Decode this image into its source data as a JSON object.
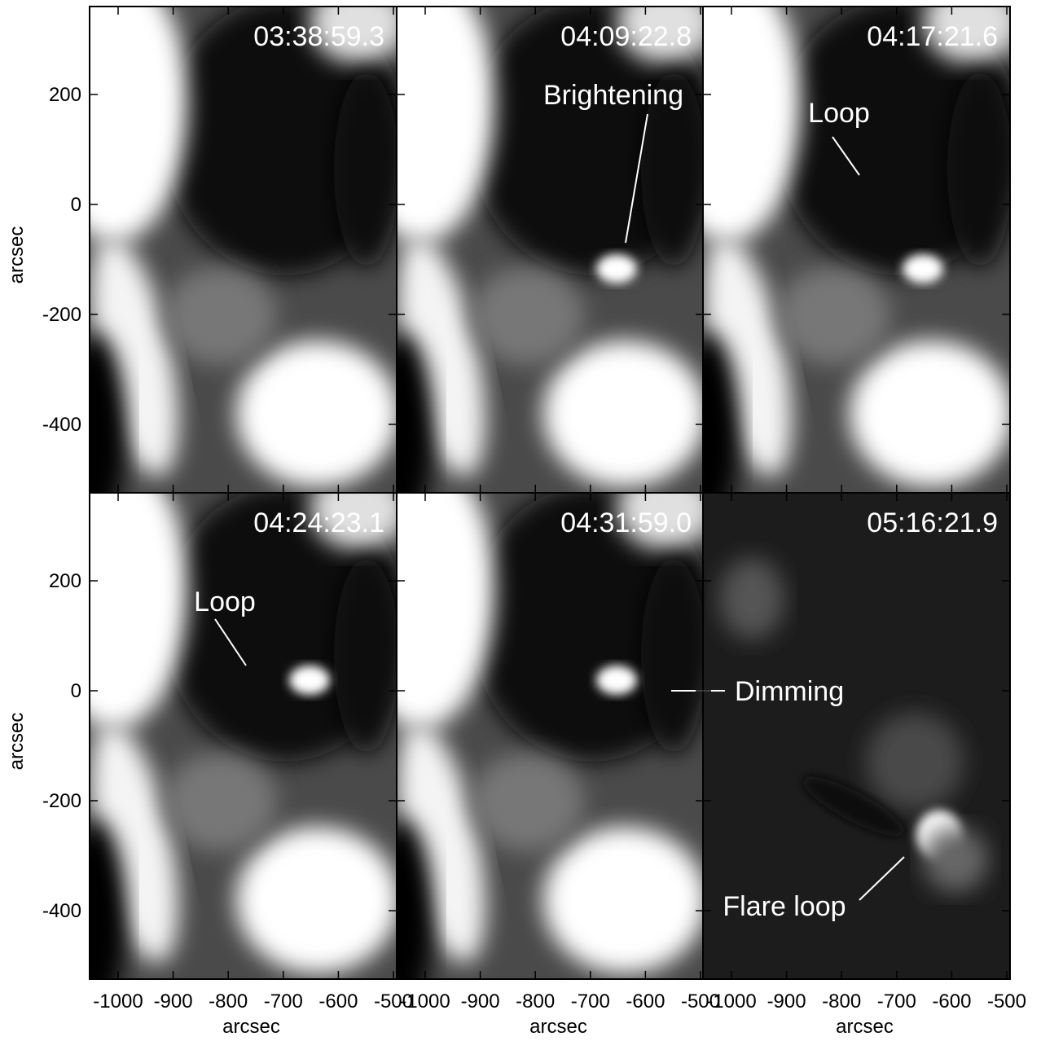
{
  "axes": {
    "x_label": "arcsec",
    "y_label": "arcsec",
    "xticks": [
      -1000,
      -900,
      -800,
      -700,
      -600,
      -500
    ],
    "yticks": [
      200,
      0,
      -200,
      -400
    ]
  },
  "panels": [
    {
      "time": "03:38:59.3"
    },
    {
      "time": "04:09:22.8",
      "annotation": "Brightening"
    },
    {
      "time": "04:17:21.6",
      "annotation": "Loop"
    },
    {
      "time": "04:24:23.1",
      "annotation": "Loop"
    },
    {
      "time": "04:31:59.0",
      "annotation": "Dimming"
    },
    {
      "time": "05:16:21.9",
      "annotation": "Flare loop"
    }
  ]
}
